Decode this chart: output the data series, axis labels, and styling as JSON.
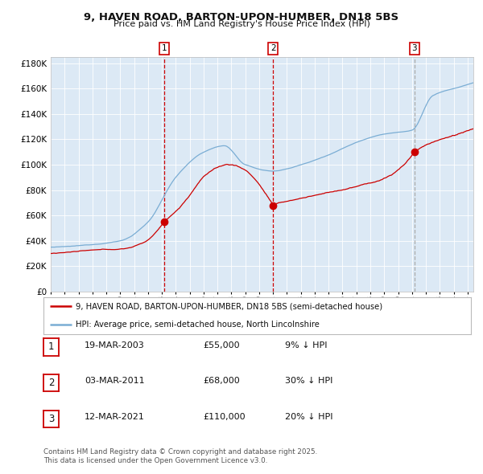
{
  "title": "9, HAVEN ROAD, BARTON-UPON-HUMBER, DN18 5BS",
  "subtitle": "Price paid vs. HM Land Registry's House Price Index (HPI)",
  "bg_color": "#dce9f5",
  "red_line_color": "#cc0000",
  "blue_line_color": "#7aadd4",
  "sale_marker_color": "#cc0000",
  "dashed_red_color": "#cc0000",
  "dashed_gray_color": "#aaaaaa",
  "ylim": [
    0,
    185000
  ],
  "yticks": [
    0,
    20000,
    40000,
    60000,
    80000,
    100000,
    120000,
    140000,
    160000,
    180000
  ],
  "ytick_labels": [
    "£0",
    "£20K",
    "£40K",
    "£60K",
    "£80K",
    "£100K",
    "£120K",
    "£140K",
    "£160K",
    "£180K"
  ],
  "sale_indices": [
    98,
    192,
    314
  ],
  "sale_prices": [
    55000,
    68000,
    110000
  ],
  "sale_labels": [
    "1",
    "2",
    "3"
  ],
  "n_months": 366,
  "legend_red": "9, HAVEN ROAD, BARTON-UPON-HUMBER, DN18 5BS (semi-detached house)",
  "legend_blue": "HPI: Average price, semi-detached house, North Lincolnshire",
  "footer": "Contains HM Land Registry data © Crown copyright and database right 2025.\nThis data is licensed under the Open Government Licence v3.0.",
  "table_rows": [
    [
      "1",
      "19-MAR-2003",
      "£55,000",
      "9% ↓ HPI"
    ],
    [
      "2",
      "03-MAR-2011",
      "£68,000",
      "30% ↓ HPI"
    ],
    [
      "3",
      "12-MAR-2021",
      "£110,000",
      "20% ↓ HPI"
    ]
  ]
}
